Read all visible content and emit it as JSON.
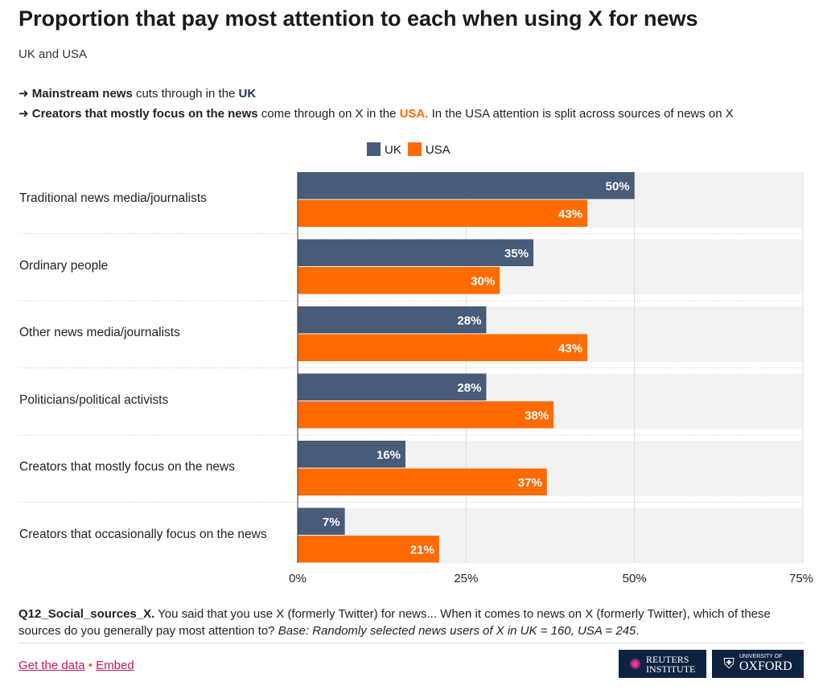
{
  "title": "Proportion that pay most attention to each when using X for news",
  "subtitle": "UK and USA",
  "notes": [
    {
      "arrow": "➜",
      "bold": "Mainstream news",
      "text": " cuts through in the ",
      "country": "UK",
      "rest": ""
    },
    {
      "arrow": "➜",
      "bold": "Creators that mostly focus on the news",
      "text": " come through on X in the ",
      "country": "USA",
      "rest": ". In the USA attention is split across sources of news on X"
    }
  ],
  "colors": {
    "UK": "#485b79",
    "USA": "#ff6b00",
    "track": "#f2f2f2"
  },
  "chart_data": {
    "type": "bar",
    "orientation": "horizontal",
    "categories": [
      "Traditional news media/journalists",
      "Ordinary people",
      "Other news media/journalists",
      "Politicians/political activists",
      "Creators that mostly focus on the news",
      "Creators that occasionally focus on the news"
    ],
    "series": [
      {
        "name": "UK",
        "values": [
          50,
          35,
          28,
          28,
          16,
          7
        ]
      },
      {
        "name": "USA",
        "values": [
          43,
          30,
          43,
          38,
          37,
          21
        ]
      }
    ],
    "xlim": [
      0,
      75
    ],
    "xticks": [
      "0%",
      "25%",
      "50%",
      "75%"
    ],
    "legend": "top",
    "grid": true
  },
  "footer": {
    "qid": "Q12_Social_sources_X.",
    "question": " You said that you use X (formerly Twitter) for news... When it comes to news on X (formerly Twitter), which of these sources do you generally pay most attention to? ",
    "base": "Base: Randomly selected news users of X in UK = 160, USA = 245",
    "end": "."
  },
  "links": {
    "data": "Get the data",
    "sep": "•",
    "embed": "Embed"
  },
  "logos": {
    "reuters": "REUTERS INSTITUTE",
    "oxford_small": "UNIVERSITY OF",
    "oxford": "OXFORD"
  }
}
